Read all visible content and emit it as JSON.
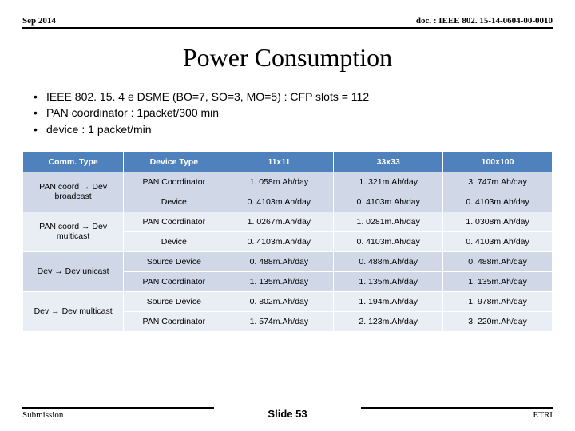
{
  "header": {
    "date": "Sep 2014",
    "doc": "doc. : IEEE 802. 15-14-0604-00-0010"
  },
  "title": "Power Consumption",
  "bullets": [
    "IEEE 802. 15. 4 e DSME (BO=7, SO=3, MO=5) : CFP slots = 112",
    "PAN coordinator : 1packet/300 min",
    "device : 1 packet/min"
  ],
  "table": {
    "columns": [
      "Comm. Type",
      "Device Type",
      "11x11",
      "33x33",
      "100x100"
    ],
    "groups": [
      {
        "comm": "PAN coord → Dev broadcast",
        "band": "band1",
        "rows": [
          [
            "PAN Coordinator",
            "1. 058m.Ah/day",
            "1. 321m.Ah/day",
            "3. 747m.Ah/day"
          ],
          [
            "Device",
            "0. 4103m.Ah/day",
            "0. 4103m.Ah/day",
            "0. 4103m.Ah/day"
          ]
        ]
      },
      {
        "comm": "PAN coord → Dev multicast",
        "band": "band2",
        "rows": [
          [
            "PAN Coordinator",
            "1. 0267m.Ah/day",
            "1. 0281m.Ah/day",
            "1. 0308m.Ah/day"
          ],
          [
            "Device",
            "0. 4103m.Ah/day",
            "0. 4103m.Ah/day",
            "0. 4103m.Ah/day"
          ]
        ]
      },
      {
        "comm": "Dev → Dev unicast",
        "band": "band1",
        "rows": [
          [
            "Source Device",
            "0. 488m.Ah/day",
            "0. 488m.Ah/day",
            "0. 488m.Ah/day"
          ],
          [
            "PAN Coordinator",
            "1. 135m.Ah/day",
            "1. 135m.Ah/day",
            "1. 135m.Ah/day"
          ]
        ]
      },
      {
        "comm": "Dev → Dev multicast",
        "band": "band2",
        "rows": [
          [
            "Source Device",
            "0. 802m.Ah/day",
            "1. 194m.Ah/day",
            "1. 978m.Ah/day"
          ],
          [
            "PAN Coordinator",
            "1. 574m.Ah/day",
            "2. 123m.Ah/day",
            "3. 220m.Ah/day"
          ]
        ]
      }
    ]
  },
  "footer": {
    "left": "Submission",
    "center": "Slide 53",
    "right": "ETRI"
  }
}
